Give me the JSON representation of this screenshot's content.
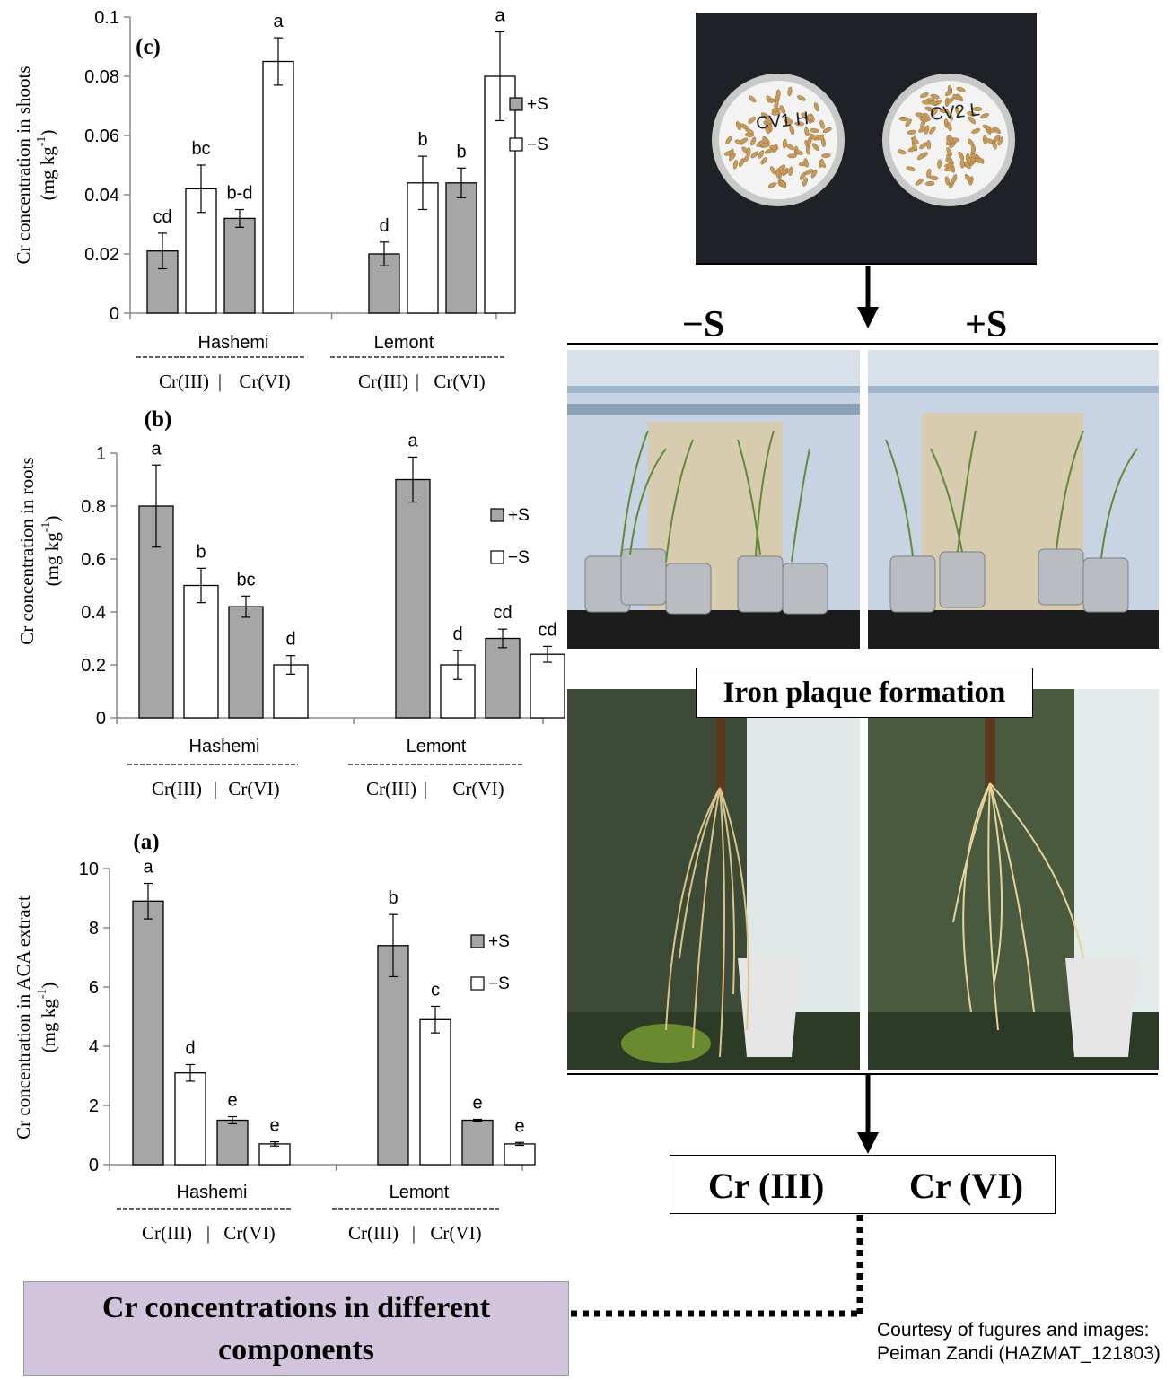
{
  "chart_data": [
    {
      "panel": "(c)",
      "type": "bar",
      "ylabel_line1": "Cr concentration in shoots",
      "ylabel_line2": "(mg kg",
      "ylabel_sup": "-1",
      "ylim": [
        0,
        0.1
      ],
      "yticks": [
        "0",
        "0.02",
        "0.04",
        "0.06",
        "0.08",
        "0.1"
      ],
      "ytick_values": [
        0,
        0.02,
        0.04,
        0.06,
        0.08,
        0.1
      ],
      "groups": [
        "Hashemi",
        "Lemont"
      ],
      "sub_labels": {
        "left": "Cr(III)",
        "sep": "|",
        "right": "Cr(VI)"
      },
      "legend": [
        "+S",
        "−S"
      ],
      "legend_placement": "right",
      "bars": [
        {
          "group": "Hashemi",
          "species": "Cr(III)",
          "treatment": "+S",
          "value": 0.021,
          "err": 0.006,
          "letter": "cd"
        },
        {
          "group": "Hashemi",
          "species": "Cr(III)",
          "treatment": "−S",
          "value": 0.042,
          "err": 0.008,
          "letter": "bc"
        },
        {
          "group": "Hashemi",
          "species": "Cr(VI)",
          "treatment": "+S",
          "value": 0.032,
          "err": 0.003,
          "letter": "b-d"
        },
        {
          "group": "Hashemi",
          "species": "Cr(VI)",
          "treatment": "−S",
          "value": 0.085,
          "err": 0.008,
          "letter": "a"
        },
        {
          "group": "Lemont",
          "species": "Cr(III)",
          "treatment": "+S",
          "value": 0.02,
          "err": 0.004,
          "letter": "d"
        },
        {
          "group": "Lemont",
          "species": "Cr(III)",
          "treatment": "−S",
          "value": 0.044,
          "err": 0.009,
          "letter": "b"
        },
        {
          "group": "Lemont",
          "species": "Cr(VI)",
          "treatment": "+S",
          "value": 0.044,
          "err": 0.005,
          "letter": "b"
        },
        {
          "group": "Lemont",
          "species": "Cr(VI)",
          "treatment": "−S",
          "value": 0.08,
          "err": 0.015,
          "letter": "a"
        }
      ]
    },
    {
      "panel": "(b)",
      "type": "bar",
      "ylabel_line1": "Cr concentration in roots",
      "ylabel_line2": "(mg kg",
      "ylabel_sup": "-1",
      "ylim": [
        0,
        1
      ],
      "yticks": [
        "0",
        "0.2",
        "0.4",
        "0.6",
        "0.8",
        "1"
      ],
      "ytick_values": [
        0,
        0.2,
        0.4,
        0.6,
        0.8,
        1
      ],
      "groups": [
        "Hashemi",
        "Lemont"
      ],
      "sub_labels": {
        "left": "Cr(III)",
        "sep": "|",
        "right": "Cr(VI)"
      },
      "legend": [
        "+S",
        "−S"
      ],
      "legend_placement": "right",
      "bars": [
        {
          "group": "Hashemi",
          "species": "Cr(III)",
          "treatment": "+S",
          "value": 0.8,
          "err": 0.155,
          "letter": "a"
        },
        {
          "group": "Hashemi",
          "species": "Cr(III)",
          "treatment": "−S",
          "value": 0.5,
          "err": 0.065,
          "letter": "b"
        },
        {
          "group": "Hashemi",
          "species": "Cr(VI)",
          "treatment": "+S",
          "value": 0.42,
          "err": 0.04,
          "letter": "bc"
        },
        {
          "group": "Hashemi",
          "species": "Cr(VI)",
          "treatment": "−S",
          "value": 0.2,
          "err": 0.035,
          "letter": "d"
        },
        {
          "group": "Lemont",
          "species": "Cr(III)",
          "treatment": "+S",
          "value": 0.9,
          "err": 0.085,
          "letter": "a"
        },
        {
          "group": "Lemont",
          "species": "Cr(III)",
          "treatment": "−S",
          "value": 0.2,
          "err": 0.055,
          "letter": "d"
        },
        {
          "group": "Lemont",
          "species": "Cr(VI)",
          "treatment": "+S",
          "value": 0.3,
          "err": 0.035,
          "letter": "cd"
        },
        {
          "group": "Lemont",
          "species": "Cr(VI)",
          "treatment": "−S",
          "value": 0.24,
          "err": 0.03,
          "letter": "cd"
        }
      ]
    },
    {
      "panel": "(a)",
      "type": "bar",
      "ylabel_line1": "Cr concentration in ACA extract",
      "ylabel_line2": "(mg kg",
      "ylabel_sup": "-1",
      "ylim": [
        0,
        10
      ],
      "yticks": [
        "0",
        "2",
        "4",
        "6",
        "8",
        "10"
      ],
      "ytick_values": [
        0,
        2,
        4,
        6,
        8,
        10
      ],
      "groups": [
        "Hashemi",
        "Lemont"
      ],
      "sub_labels": {
        "left": "Cr(III)",
        "sep": "|",
        "right": "Cr(VI)"
      },
      "legend": [
        "+S",
        "−S"
      ],
      "legend_placement": "right",
      "bars": [
        {
          "group": "Hashemi",
          "species": "Cr(III)",
          "treatment": "+S",
          "value": 8.9,
          "err": 0.6,
          "letter": "a"
        },
        {
          "group": "Hashemi",
          "species": "Cr(III)",
          "treatment": "−S",
          "value": 3.1,
          "err": 0.28,
          "letter": "d"
        },
        {
          "group": "Hashemi",
          "species": "Cr(VI)",
          "treatment": "+S",
          "value": 1.5,
          "err": 0.12,
          "letter": "e"
        },
        {
          "group": "Hashemi",
          "species": "Cr(VI)",
          "treatment": "−S",
          "value": 0.7,
          "err": 0.07,
          "letter": "e"
        },
        {
          "group": "Lemont",
          "species": "Cr(III)",
          "treatment": "+S",
          "value": 7.4,
          "err": 1.05,
          "letter": "b"
        },
        {
          "group": "Lemont",
          "species": "Cr(III)",
          "treatment": "−S",
          "value": 4.9,
          "err": 0.45,
          "letter": "c"
        },
        {
          "group": "Lemont",
          "species": "Cr(VI)",
          "treatment": "+S",
          "value": 1.5,
          "err": 0.03,
          "letter": "e"
        },
        {
          "group": "Lemont",
          "species": "Cr(VI)",
          "treatment": "−S",
          "value": 0.7,
          "err": 0.05,
          "letter": "e"
        }
      ]
    }
  ],
  "colors": {
    "plus_s_bar": "#a6a6a6",
    "minus_s_bar": "#ffffff",
    "summary_box": "#d3c4dd",
    "lab_bench": "#1c1c1c"
  },
  "right_panel": {
    "minus_s_label": "−S",
    "plus_s_label": "+S",
    "dish_labels": [
      "CV1 H",
      "CV2 L"
    ],
    "iron_plaque_title": "Iron plaque formation",
    "species_box": {
      "left": "Cr (III)",
      "right": "Cr (VI)"
    }
  },
  "summary_box": {
    "line1": "Cr concentrations in different",
    "line2": "components"
  },
  "credit": {
    "line1": "Courtesy of fugures and images:",
    "line2": "Peiman Zandi (HAZMAT_121803)"
  }
}
